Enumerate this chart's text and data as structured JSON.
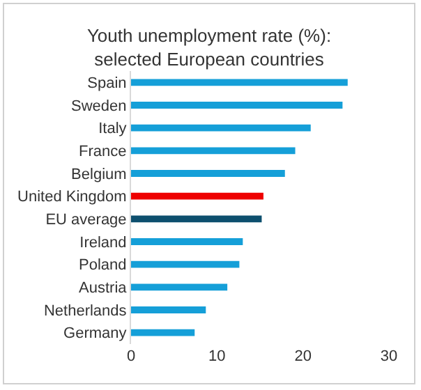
{
  "chart_data": {
    "type": "bar",
    "orientation": "horizontal",
    "title": "Youth unemployment rate (%):\nselected European countries",
    "categories": [
      "Spain",
      "Sweden",
      "Italy",
      "France",
      "Belgium",
      "United Kingdom",
      "EU average",
      "Ireland",
      "Poland",
      "Austria",
      "Netherlands",
      "Germany"
    ],
    "values": [
      25.2,
      24.6,
      20.9,
      19.1,
      17.9,
      15.4,
      15.2,
      13.0,
      12.6,
      11.2,
      8.7,
      7.4
    ],
    "colors": [
      "#159fd8",
      "#159fd8",
      "#159fd8",
      "#159fd8",
      "#159fd8",
      "#ee0000",
      "#0d4f6e",
      "#159fd8",
      "#159fd8",
      "#159fd8",
      "#159fd8",
      "#159fd8"
    ],
    "xlim": [
      0,
      30
    ],
    "xticks": [
      0,
      10,
      20,
      30
    ],
    "grid": false
  }
}
